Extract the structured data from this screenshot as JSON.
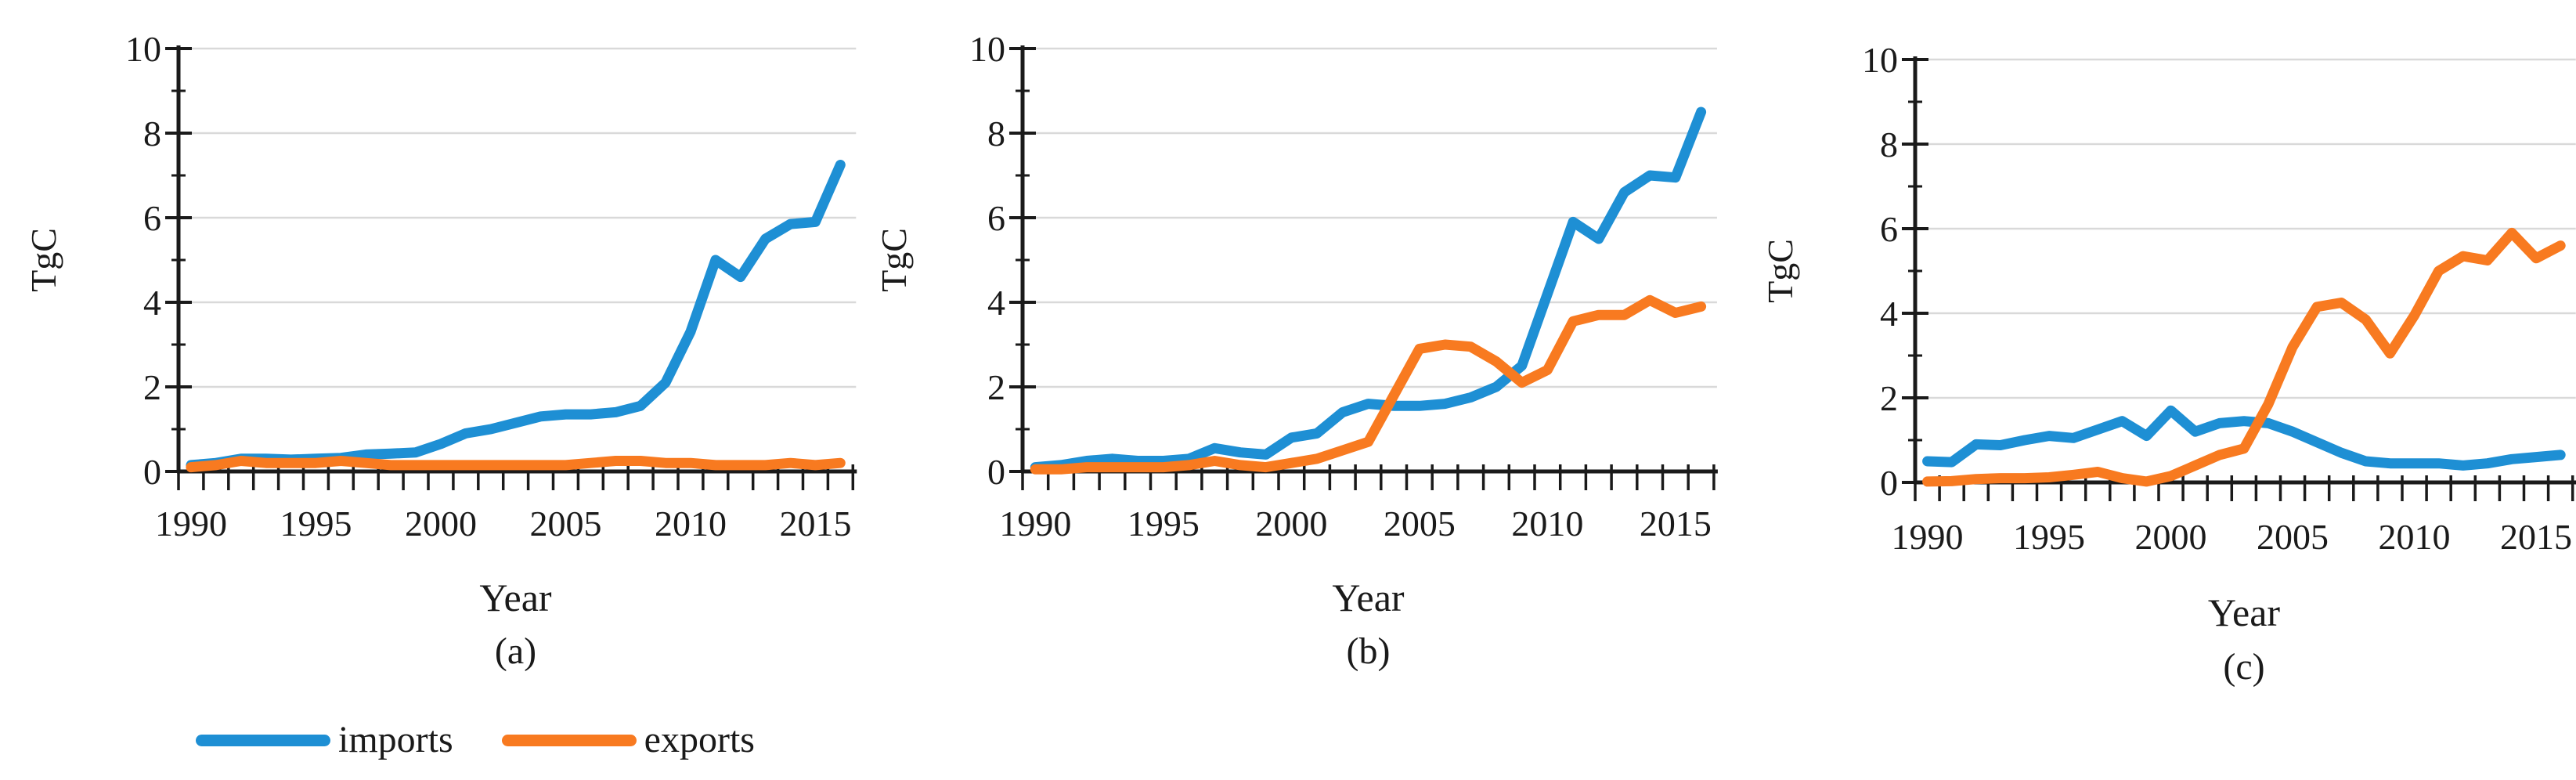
{
  "figure": {
    "description": "Three-panel line chart figure comparing imports and exports over time",
    "panel_captions": [
      "(a)",
      "(b)",
      "(c)"
    ]
  },
  "style": {
    "background": "#FFFFFF",
    "grid_color": "#D9D9D9",
    "axis_color": "#1A1A1A",
    "text_color": "#1A1A1A",
    "imports_color": "#1E8FD4",
    "exports_color": "#F87A20"
  },
  "legend": {
    "position": "bottom-left under panel (a)",
    "items": [
      {
        "label": "imports",
        "color": "#1E8FD4"
      },
      {
        "label": "exports",
        "color": "#F87A20"
      }
    ]
  },
  "chart_data": [
    {
      "type": "line",
      "title": "(a)",
      "xlabel": "Year",
      "ylabel": "TgC",
      "ylim": [
        0,
        10
      ],
      "yticks": [
        0,
        2,
        4,
        6,
        8,
        10
      ],
      "xtick_labels": [
        "1990",
        "1995",
        "2000",
        "2005",
        "2010",
        "2015"
      ],
      "grid": true,
      "categories": [
        1990,
        1991,
        1992,
        1993,
        1994,
        1995,
        1996,
        1997,
        1998,
        1999,
        2000,
        2001,
        2002,
        2003,
        2004,
        2005,
        2006,
        2007,
        2008,
        2009,
        2010,
        2011,
        2012,
        2013,
        2014,
        2015,
        2016
      ],
      "series": [
        {
          "name": "imports",
          "color": "#1E8FD4",
          "values": [
            0.15,
            0.2,
            0.3,
            0.3,
            0.28,
            0.3,
            0.32,
            0.4,
            0.42,
            0.45,
            0.65,
            0.9,
            1.0,
            1.15,
            1.3,
            1.35,
            1.35,
            1.4,
            1.55,
            2.1,
            3.3,
            5.0,
            4.6,
            5.5,
            5.85,
            5.9,
            7.25
          ]
        },
        {
          "name": "exports",
          "color": "#F87A20",
          "values": [
            0.1,
            0.15,
            0.25,
            0.2,
            0.2,
            0.2,
            0.25,
            0.2,
            0.15,
            0.15,
            0.15,
            0.15,
            0.15,
            0.15,
            0.15,
            0.15,
            0.2,
            0.25,
            0.25,
            0.2,
            0.2,
            0.15,
            0.15,
            0.15,
            0.2,
            0.15,
            0.2
          ]
        }
      ]
    },
    {
      "type": "line",
      "title": "(b)",
      "xlabel": "Year",
      "ylabel": "TgC",
      "ylim": [
        0,
        10
      ],
      "yticks": [
        0,
        2,
        4,
        6,
        8,
        10
      ],
      "xtick_labels": [
        "1990",
        "1995",
        "2000",
        "2005",
        "2010",
        "2015"
      ],
      "grid": true,
      "categories": [
        1990,
        1991,
        1992,
        1993,
        1994,
        1995,
        1996,
        1997,
        1998,
        1999,
        2000,
        2001,
        2002,
        2003,
        2004,
        2005,
        2006,
        2007,
        2008,
        2009,
        2010,
        2011,
        2012,
        2013,
        2014,
        2015,
        2016
      ],
      "series": [
        {
          "name": "imports",
          "color": "#1E8FD4",
          "values": [
            0.1,
            0.15,
            0.25,
            0.3,
            0.25,
            0.25,
            0.3,
            0.55,
            0.45,
            0.4,
            0.8,
            0.9,
            1.4,
            1.6,
            1.55,
            1.55,
            1.6,
            1.75,
            2.0,
            2.5,
            4.2,
            5.9,
            5.5,
            6.6,
            7.0,
            6.95,
            8.5
          ]
        },
        {
          "name": "exports",
          "color": "#F87A20",
          "values": [
            0.05,
            0.05,
            0.1,
            0.1,
            0.1,
            0.1,
            0.15,
            0.25,
            0.15,
            0.1,
            0.2,
            0.3,
            0.5,
            0.7,
            1.8,
            2.9,
            3.0,
            2.95,
            2.6,
            2.1,
            2.4,
            3.55,
            3.7,
            3.7,
            4.05,
            3.75,
            3.9
          ]
        }
      ]
    },
    {
      "type": "line",
      "title": "(c)",
      "xlabel": "Year",
      "ylabel": "TgC",
      "ylim": [
        0,
        10
      ],
      "yticks": [
        0,
        2,
        4,
        6,
        8,
        10
      ],
      "xtick_labels": [
        "1990",
        "1995",
        "2000",
        "2005",
        "2010",
        "2015"
      ],
      "grid": true,
      "categories": [
        1990,
        1991,
        1992,
        1993,
        1994,
        1995,
        1996,
        1997,
        1998,
        1999,
        2000,
        2001,
        2002,
        2003,
        2004,
        2005,
        2006,
        2007,
        2008,
        2009,
        2010,
        2011,
        2012,
        2013,
        2014,
        2015,
        2016
      ],
      "series": [
        {
          "name": "imports",
          "color": "#1E8FD4",
          "values": [
            0.5,
            0.48,
            0.9,
            0.88,
            1.0,
            1.1,
            1.05,
            1.25,
            1.45,
            1.1,
            1.7,
            1.2,
            1.4,
            1.45,
            1.4,
            1.2,
            0.95,
            0.7,
            0.5,
            0.45,
            0.45,
            0.45,
            0.4,
            0.45,
            0.55,
            0.6,
            0.65
          ]
        },
        {
          "name": "exports",
          "color": "#F87A20",
          "values": [
            0.02,
            0.03,
            0.08,
            0.1,
            0.1,
            0.12,
            0.18,
            0.25,
            0.1,
            0.02,
            0.15,
            0.4,
            0.65,
            0.8,
            1.85,
            3.2,
            4.15,
            4.25,
            3.85,
            3.05,
            3.95,
            5.0,
            5.35,
            5.25,
            5.9,
            5.3,
            5.6
          ]
        }
      ]
    }
  ]
}
